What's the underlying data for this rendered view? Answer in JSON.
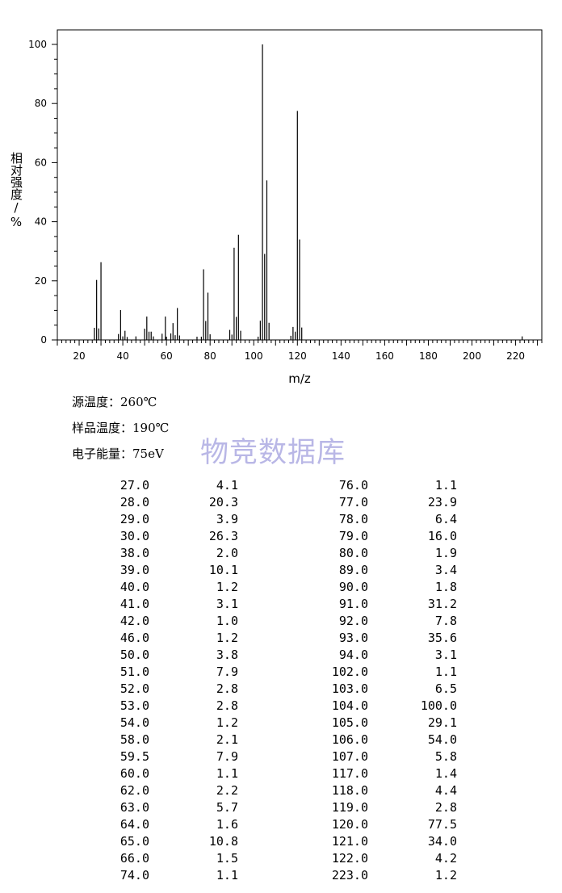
{
  "chart_data": {
    "type": "bar",
    "xlabel": "m/z",
    "ylabel": "相对强度/%",
    "xlim": [
      10,
      232
    ],
    "ylim": [
      0,
      105
    ],
    "xticks": [
      20,
      40,
      60,
      80,
      100,
      120,
      140,
      160,
      180,
      200,
      220
    ],
    "yticks": [
      0,
      20,
      40,
      60,
      80,
      100
    ],
    "peaks": [
      [
        27.0,
        4.1
      ],
      [
        28.0,
        20.3
      ],
      [
        29.0,
        3.9
      ],
      [
        30.0,
        26.3
      ],
      [
        38.0,
        2.0
      ],
      [
        39.0,
        10.1
      ],
      [
        40.0,
        1.2
      ],
      [
        41.0,
        3.1
      ],
      [
        42.0,
        1.0
      ],
      [
        46.0,
        1.2
      ],
      [
        50.0,
        3.8
      ],
      [
        51.0,
        7.9
      ],
      [
        52.0,
        2.8
      ],
      [
        53.0,
        2.8
      ],
      [
        54.0,
        1.2
      ],
      [
        58.0,
        2.1
      ],
      [
        59.5,
        7.9
      ],
      [
        60.0,
        1.1
      ],
      [
        62.0,
        2.2
      ],
      [
        63.0,
        5.7
      ],
      [
        64.0,
        1.6
      ],
      [
        65.0,
        10.8
      ],
      [
        66.0,
        1.5
      ],
      [
        74.0,
        1.1
      ],
      [
        76.0,
        1.1
      ],
      [
        77.0,
        23.9
      ],
      [
        78.0,
        6.4
      ],
      [
        79.0,
        16.0
      ],
      [
        80.0,
        1.9
      ],
      [
        89.0,
        3.4
      ],
      [
        90.0,
        1.8
      ],
      [
        91.0,
        31.2
      ],
      [
        92.0,
        7.8
      ],
      [
        93.0,
        35.6
      ],
      [
        94.0,
        3.1
      ],
      [
        102.0,
        1.1
      ],
      [
        103.0,
        6.5
      ],
      [
        104.0,
        100.0
      ],
      [
        105.0,
        29.1
      ],
      [
        106.0,
        54.0
      ],
      [
        107.0,
        5.8
      ],
      [
        117.0,
        1.4
      ],
      [
        118.0,
        4.4
      ],
      [
        119.0,
        2.8
      ],
      [
        120.0,
        77.5
      ],
      [
        121.0,
        34.0
      ],
      [
        122.0,
        4.2
      ],
      [
        223.0,
        1.2
      ]
    ]
  },
  "conditions": {
    "source_temp": "源温度：260℃",
    "sample_temp": "样品温度：190℃",
    "electron_energy": "电子能量：75eV"
  },
  "watermark": "物竞数据库",
  "table": {
    "left": [
      [
        "27.0",
        "4.1"
      ],
      [
        "28.0",
        "20.3"
      ],
      [
        "29.0",
        "3.9"
      ],
      [
        "30.0",
        "26.3"
      ],
      [
        "38.0",
        "2.0"
      ],
      [
        "39.0",
        "10.1"
      ],
      [
        "40.0",
        "1.2"
      ],
      [
        "41.0",
        "3.1"
      ],
      [
        "42.0",
        "1.0"
      ],
      [
        "46.0",
        "1.2"
      ],
      [
        "50.0",
        "3.8"
      ],
      [
        "51.0",
        "7.9"
      ],
      [
        "52.0",
        "2.8"
      ],
      [
        "53.0",
        "2.8"
      ],
      [
        "54.0",
        "1.2"
      ],
      [
        "58.0",
        "2.1"
      ],
      [
        "59.5",
        "7.9"
      ],
      [
        "60.0",
        "1.1"
      ],
      [
        "62.0",
        "2.2"
      ],
      [
        "63.0",
        "5.7"
      ],
      [
        "64.0",
        "1.6"
      ],
      [
        "65.0",
        "10.8"
      ],
      [
        "66.0",
        "1.5"
      ],
      [
        "74.0",
        "1.1"
      ]
    ],
    "right": [
      [
        "76.0",
        "1.1"
      ],
      [
        "77.0",
        "23.9"
      ],
      [
        "78.0",
        "6.4"
      ],
      [
        "79.0",
        "16.0"
      ],
      [
        "80.0",
        "1.9"
      ],
      [
        "89.0",
        "3.4"
      ],
      [
        "90.0",
        "1.8"
      ],
      [
        "91.0",
        "31.2"
      ],
      [
        "92.0",
        "7.8"
      ],
      [
        "93.0",
        "35.6"
      ],
      [
        "94.0",
        "3.1"
      ],
      [
        "102.0",
        "1.1"
      ],
      [
        "103.0",
        "6.5"
      ],
      [
        "104.0",
        "100.0"
      ],
      [
        "105.0",
        "29.1"
      ],
      [
        "106.0",
        "54.0"
      ],
      [
        "107.0",
        "5.8"
      ],
      [
        "117.0",
        "1.4"
      ],
      [
        "118.0",
        "4.4"
      ],
      [
        "119.0",
        "2.8"
      ],
      [
        "120.0",
        "77.5"
      ],
      [
        "121.0",
        "34.0"
      ],
      [
        "122.0",
        "4.2"
      ],
      [
        "223.0",
        "1.2"
      ]
    ]
  }
}
